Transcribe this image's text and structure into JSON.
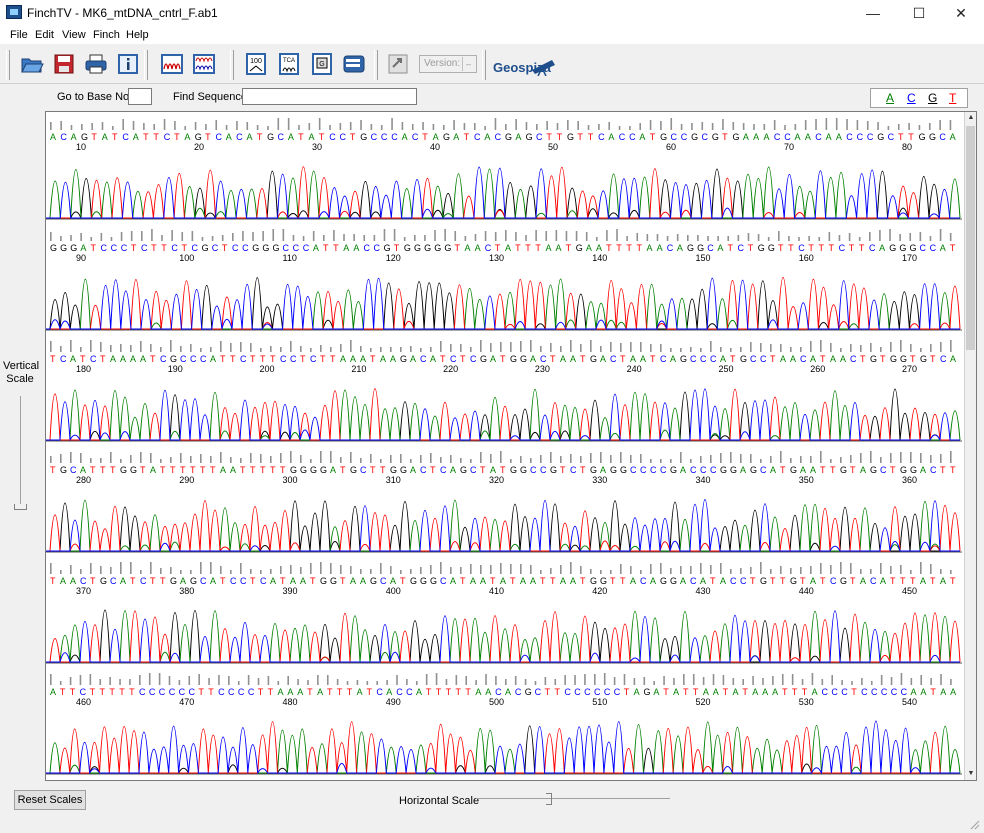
{
  "window": {
    "title": "FinchTV - MK6_mtDNA_cntrl_F.ab1",
    "minimize": "—",
    "maximize": "☐",
    "close": "✕"
  },
  "menu": [
    "File",
    "Edit",
    "View",
    "Finch",
    "Help"
  ],
  "toolbar": {
    "icons": [
      "open-icon",
      "save-icon",
      "print-icon",
      "info-icon",
      "trace-view-icon",
      "multi-trace-icon",
      "quality-100-icon",
      "tca-view-icon",
      "base-call-icon",
      "scroll-view-icon",
      "export-icon"
    ],
    "version_label": "Version:",
    "version_value": "–",
    "brand": "Geospiza"
  },
  "goto": {
    "go_to_base_label": "Go to Base No.",
    "go_to_base_value": "",
    "find_sequence_label": "Find Sequence",
    "find_sequence_value": ""
  },
  "legend": {
    "A": "A",
    "C": "C",
    "G": "G",
    "T": "T",
    "colors": {
      "A": "#008000",
      "C": "#0000ff",
      "G": "#000000",
      "T": "#ff0000"
    }
  },
  "vertical_scale": {
    "label": "Vertical\nScale"
  },
  "rows": [
    {
      "seq": "A CAG  TA T CA  T T C TA G T CA CAT G CAT AT C CT G CC CACT AG AT CA CG AG CT T GT T CAC CAT G CC G C G T G AAA C CA A CAA C C C G CT T G G CA",
      "ticks": [
        10,
        20,
        30,
        40,
        50,
        60,
        70,
        80
      ]
    },
    {
      "seq": "G G G AT C C C T C T T C T C G C T C C G G G C C C AT T AA C C G T G G G G G T AA CT AT T T AA T G AAT T T T AA CA G G CAT CT G G T T CT T T CT T CA G G G C CAT",
      "ticks": [
        90,
        100,
        110,
        120,
        130,
        140,
        150,
        160,
        170
      ]
    },
    {
      "seq": "T CAT CT AAAAT C G C C CAT T CT T T C C T CT T AAAT AA G A CAT CT C GAT G G ACT AAT G ACT AAT CA G C C CAT G C CT AA CAT AACT G T G GT GT CA",
      "ticks": [
        180,
        190,
        200,
        210,
        220,
        230,
        240,
        250,
        260,
        270
      ]
    },
    {
      "seq": "T G CAT T T G GT AT T T T T T AAT T T T T G G G GAT G CT T G G ACT CA G CT AT G G C C G T CT GA G G C C C C GA C C C G GA G CAT GAAT T GT AG CT G G ACT T",
      "ticks": [
        280,
        290,
        300,
        310,
        320,
        330,
        340,
        350,
        360
      ]
    },
    {
      "seq": "T AACT G CAT CT T GA G CAT C CT CAT AAT G GT AA G CAT G G G CAT AAT AT AAT T AAT G G T T ACA G G ACAT AC CT G T T GT AT C GT ACAT T T AT AT",
      "ticks": [
        370,
        380,
        390,
        400,
        410,
        420,
        430,
        440,
        450
      ]
    },
    {
      "seq": "AT T C T T T T T C C C C C C T T C C C C T T AAAT AT T T AT CA C CAT T T T T AA CA C G CT T C C C C C C T A G AT AT T AAT AT AAAT T T AC C CTC C C C C AAT AA",
      "ticks": [
        460,
        470,
        480,
        490,
        500,
        510,
        520,
        530,
        540
      ]
    }
  ],
  "bottom": {
    "reset_scales": "Reset Scales",
    "horizontal_scale": "Horizontal Scale"
  }
}
